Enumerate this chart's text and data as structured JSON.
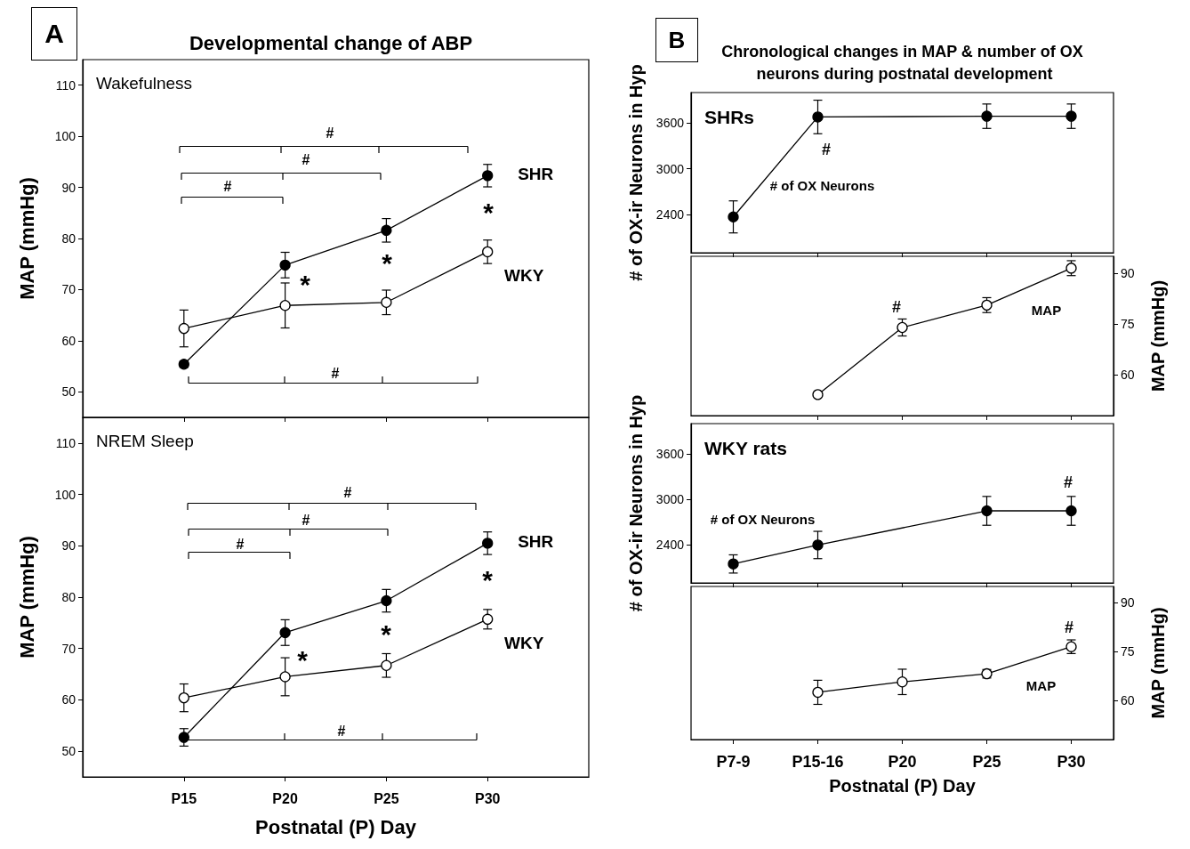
{
  "chart_data": [
    {
      "type": "line",
      "title": "Developmental change of ABP",
      "subtitle": "Wakefulness",
      "ylabel": "MAP (mmHg)",
      "categories": [
        null,
        null,
        null,
        null
      ],
      "ylim": [
        45,
        115
      ],
      "yticks": [
        50,
        60,
        70,
        80,
        90,
        100,
        110
      ],
      "marker": "circle",
      "series": [
        {
          "name": "SHR",
          "color": "#000000",
          "values": [
            55.4,
            74.8,
            81.6,
            92.3
          ],
          "errors": [
            0.6,
            2.5,
            2.3,
            2.2
          ]
        },
        {
          "name": "WKY",
          "color": "#000000",
          "colors": [
            "#ffffff",
            "#ffffff",
            "#ffffff",
            "#ffffff"
          ],
          "values": [
            62.4,
            66.9,
            67.5,
            77.4
          ],
          "errors": [
            3.6,
            4.4,
            2.4,
            2.3
          ]
        }
      ],
      "annotations": [
        "A",
        "#",
        "#",
        "#",
        "#",
        "*",
        "*",
        "*"
      ]
    },
    {
      "type": "line",
      "subtitle": "NREM Sleep",
      "xlabel": "Postnatal (P) Day",
      "ylabel": "MAP (mmHg)",
      "categories": [
        "P15",
        "P20",
        "P25",
        "P30"
      ],
      "ylim": [
        45,
        115
      ],
      "yticks": [
        50,
        60,
        70,
        80,
        90,
        100,
        110
      ],
      "marker": "circle",
      "series": [
        {
          "name": "SHR",
          "color": "#000000",
          "values": [
            52.7,
            73.1,
            79.3,
            90.5
          ],
          "errors": [
            1.7,
            2.5,
            2.2,
            2.2
          ]
        },
        {
          "name": "WKY",
          "color": "#000000",
          "colors": [
            "#ffffff",
            "#ffffff",
            "#ffffff",
            "#ffffff"
          ],
          "values": [
            60.4,
            64.5,
            66.7,
            75.7
          ],
          "errors": [
            2.7,
            3.7,
            2.3,
            1.9
          ]
        }
      ],
      "annotations": [
        "#",
        "#",
        "#",
        "#",
        "*",
        "*",
        "*"
      ]
    },
    {
      "type": "line",
      "title": "Chronological changes in MAP & number of OX neurons during postnatal development",
      "subtitle": "SHRs",
      "ylabel": "# of OX-ir Neurons in Hyp",
      "categories": [
        null,
        null,
        null,
        null,
        null
      ],
      "ylim": [
        1900,
        4000
      ],
      "yticks": [
        2400,
        3000,
        3600
      ],
      "marker": "circle",
      "series": [
        {
          "name": "# of OX Neurons",
          "color": "#000000",
          "values": [
            2370,
            3680,
            null,
            3690,
            3690
          ],
          "errors": [
            210,
            220,
            null,
            160,
            160
          ]
        }
      ],
      "annotations": [
        "B",
        "#"
      ]
    },
    {
      "type": "line",
      "ylabel": "MAP (mmHg)",
      "categories": [
        null,
        null,
        null,
        null
      ],
      "ylim": [
        48,
        95
      ],
      "yticks": [
        60,
        75,
        90
      ],
      "marker": "circle",
      "series": [
        {
          "name": "MAP",
          "color": "#000000",
          "colors": [
            "#ffffff",
            "#ffffff",
            "#ffffff",
            "#ffffff"
          ],
          "values": [
            54.2,
            74.0,
            80.6,
            91.5
          ],
          "errors": [
            null,
            2.5,
            2.2,
            2.2
          ]
        }
      ],
      "annotations": [
        "#"
      ]
    },
    {
      "type": "line",
      "subtitle": "WKY rats",
      "ylabel": "# of OX-ir Neurons in Hyp",
      "categories": [
        null,
        null,
        null,
        null,
        null
      ],
      "ylim": [
        1900,
        4000
      ],
      "yticks": [
        2400,
        3000,
        3600
      ],
      "marker": "circle",
      "series": [
        {
          "name": "# of OX Neurons",
          "color": "#000000",
          "values": [
            2150,
            2400,
            null,
            2850,
            2850
          ],
          "errors": [
            120,
            180,
            null,
            190,
            190
          ]
        }
      ],
      "annotations": [
        "#"
      ]
    },
    {
      "type": "line",
      "xlabel": "Postnatal (P) Day",
      "y2label": "MAP (mmHg)",
      "categories": [
        "P7-9",
        "P15-16",
        "P20",
        "P25",
        "P30"
      ],
      "y2lim": [
        48,
        95
      ],
      "y2ticks": [
        60,
        75,
        90
      ],
      "marker": "circle",
      "series": [
        {
          "name": "MAP",
          "axis": "y2",
          "color": "#000000",
          "colors": [
            "#ffffff",
            "#ffffff",
            "#ffffff",
            "#ffffff",
            "#ffffff"
          ],
          "values": [
            null,
            62.5,
            65.7,
            68.2,
            76.5
          ],
          "errors": [
            null,
            3.7,
            3.9,
            1.3,
            2.1
          ]
        }
      ],
      "annotations": [
        "#"
      ]
    }
  ]
}
